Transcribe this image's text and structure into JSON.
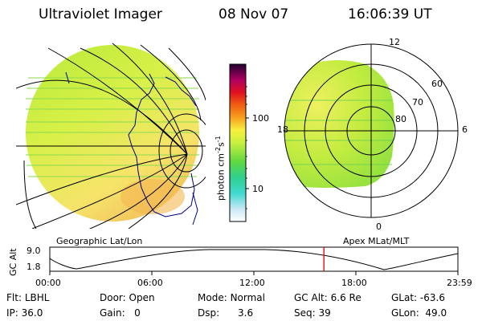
{
  "header": {
    "title": "Ultraviolet Imager",
    "date": "08 Nov 07",
    "time": "16:06:39 UT"
  },
  "colorbar": {
    "unit_label": "photon cm",
    "exp1": "-2",
    "mid": "s",
    "exp2": "-1",
    "ticks": [
      "100",
      "10"
    ]
  },
  "polar_plot": {
    "labels": {
      "top": "12",
      "bottom": "0",
      "left": "18",
      "right": "6"
    },
    "lat_labels": [
      "60",
      "70",
      "80"
    ]
  },
  "geo_caption": "Geographic Lat/Lon",
  "apex_caption": "Apex MLat/MLT",
  "altitude_plot": {
    "axis_label": "GC Alt",
    "y_ticks": [
      "9.0",
      "1.8"
    ],
    "x_ticks": [
      "00:00",
      "06:00",
      "12:00",
      "18:00",
      "23:59"
    ],
    "marker_hour": 16.11,
    "marker_color": "#e00000"
  },
  "info": {
    "flt_label": "Flt:",
    "flt_value": "LBHL",
    "ip_label": "IP:",
    "ip_value": "36.0",
    "door_label": "Door:",
    "door_value": "Open",
    "gain_label": "Gain:",
    "gain_value": "0",
    "mode_label": "Mode:",
    "mode_value": "Normal",
    "dsp_label": "Dsp:",
    "dsp_value": "3.6",
    "gcalt_label": "GC Alt:",
    "gcalt_value": "6.6 Re",
    "seq_label": "Seq:",
    "seq_value": "39",
    "glat_label": "GLat:",
    "glat_value": "-63.6",
    "glon_label": "GLon:",
    "glon_value": "49.0"
  }
}
